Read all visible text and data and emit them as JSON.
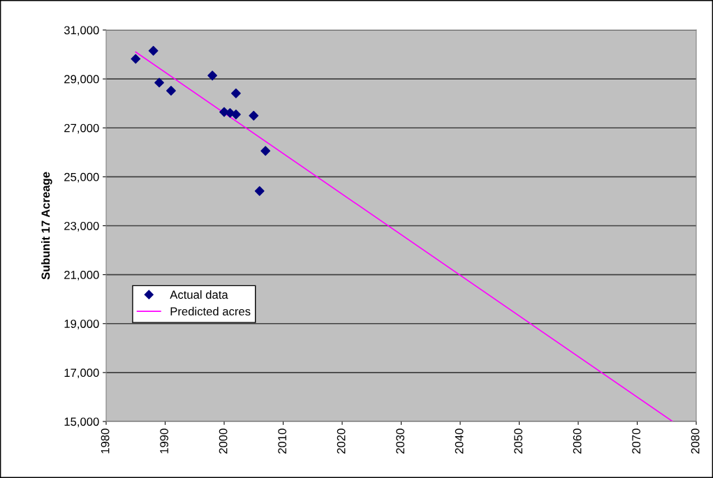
{
  "chart_data": {
    "type": "scatter",
    "ylabel": "Subunit 17 Acreage",
    "xlim": [
      1980,
      2080
    ],
    "xticks": [
      1980,
      1990,
      2000,
      2010,
      2020,
      2030,
      2040,
      2050,
      2060,
      2070,
      2080
    ],
    "ylim": [
      15000,
      31000
    ],
    "yticks": [
      {
        "value": 15000,
        "label": "15,000"
      },
      {
        "value": 17000,
        "label": "17,000"
      },
      {
        "value": 19000,
        "label": "19,000"
      },
      {
        "value": 21000,
        "label": "21,000"
      },
      {
        "value": 23000,
        "label": "23,000"
      },
      {
        "value": 25000,
        "label": "25,000"
      },
      {
        "value": 27000,
        "label": "27,000"
      },
      {
        "value": 29000,
        "label": "29,000"
      },
      {
        "value": 31000,
        "label": "31,000"
      }
    ],
    "grid": "y",
    "legend": "center left",
    "marker": "diamond",
    "series": [
      {
        "name": "Actual data",
        "color": "#000080",
        "x": [
          1985,
          1988,
          1989,
          1991,
          1998,
          2000,
          2001,
          2002,
          2002,
          2005,
          2006,
          2007
        ],
        "values": [
          29820,
          30150,
          28850,
          28520,
          29140,
          27650,
          27610,
          27550,
          28410,
          27500,
          24420,
          26060
        ]
      },
      {
        "name": "Predicted acres",
        "type": "line",
        "marker": "none",
        "color": "#ff00ff",
        "x": [
          1985,
          2076
        ],
        "values": [
          30100,
          15000
        ]
      }
    ]
  }
}
